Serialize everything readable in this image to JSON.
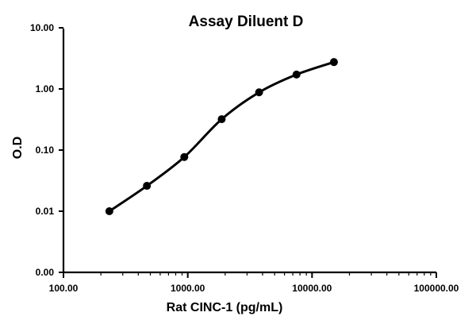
{
  "chart_data": {
    "type": "line",
    "title": "Assay Diluent D",
    "xlabel": "Rat CINC-1 (pg/mL)",
    "ylabel": "O.D",
    "x_scale": "log",
    "y_scale": "log-broken",
    "xlim": [
      100,
      100000
    ],
    "ylim": [
      0.0,
      10.0
    ],
    "x_ticks": [
      "100.00",
      "1000.00",
      "10000.00",
      "100000.00"
    ],
    "y_ticks": [
      "0.00",
      "0.01",
      "0.10",
      "1.00",
      "10.00"
    ],
    "grid": false,
    "legend": "none",
    "series": [
      {
        "x": [
          234,
          469,
          938,
          1875,
          3750,
          7500,
          15000
        ],
        "y": [
          0.01,
          0.026,
          0.077,
          0.32,
          0.88,
          1.72,
          2.75
        ]
      }
    ],
    "colors": {
      "line": "#000000",
      "marker": "#000000"
    }
  }
}
